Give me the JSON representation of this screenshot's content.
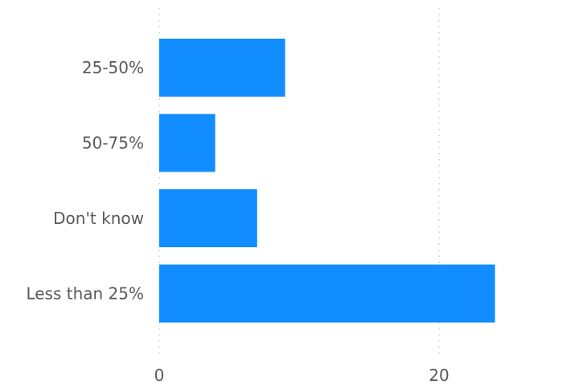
{
  "chart_data": {
    "type": "bar",
    "orientation": "horizontal",
    "categories": [
      "25-50%",
      "50-75%",
      "Don't know",
      "Less than 25%"
    ],
    "values": [
      9,
      4,
      7,
      24
    ],
    "title": "",
    "xlabel": "",
    "ylabel": "",
    "xlim": [
      0,
      30
    ],
    "x_ticks": [
      0,
      20
    ],
    "x_tick_labels": [
      "0",
      "20"
    ],
    "grid": "vertical dotted",
    "legend": "none",
    "bar_color": "#118DFF"
  }
}
